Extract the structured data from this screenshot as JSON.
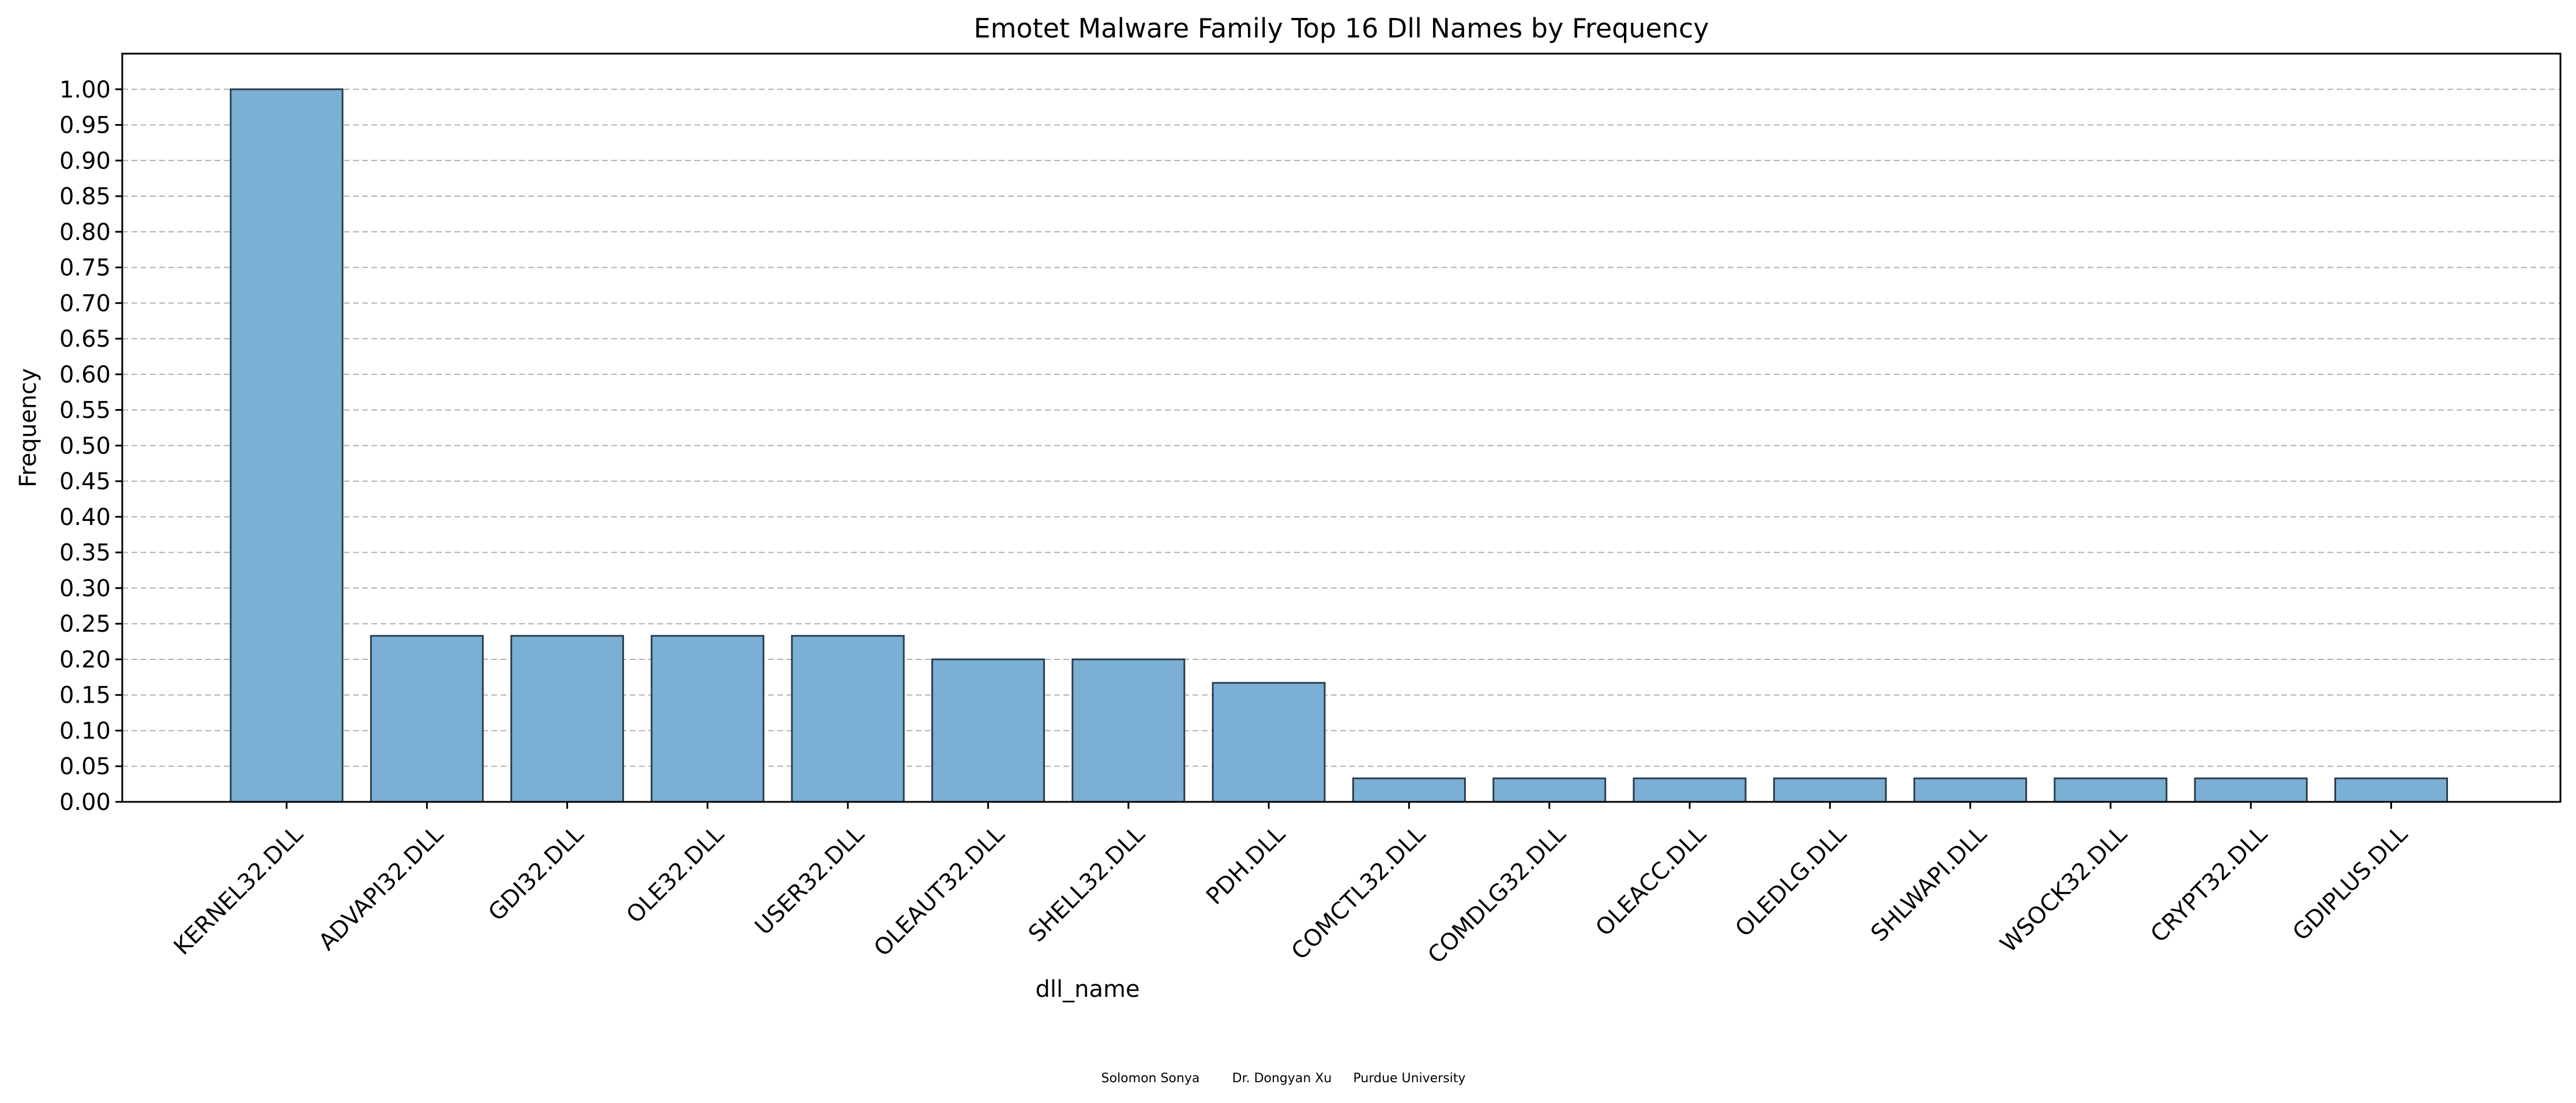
{
  "chart_data": {
    "type": "bar",
    "title": "Emotet Malware Family Top 16 Dll Names by Frequency",
    "xlabel": "dll_name",
    "ylabel": "Frequency",
    "categories": [
      "KERNEL32.DLL",
      "ADVAPI32.DLL",
      "GDI32.DLL",
      "OLE32.DLL",
      "USER32.DLL",
      "OLEAUT32.DLL",
      "SHELL32.DLL",
      "PDH.DLL",
      "COMCTL32.DLL",
      "COMDLG32.DLL",
      "OLEACC.DLL",
      "OLEDLG.DLL",
      "SHLWAPI.DLL",
      "WSOCK32.DLL",
      "CRYPT32.DLL",
      "GDIPLUS.DLL"
    ],
    "values": [
      1.0,
      0.233,
      0.233,
      0.233,
      0.233,
      0.2,
      0.2,
      0.167,
      0.033,
      0.033,
      0.033,
      0.033,
      0.033,
      0.033,
      0.033,
      0.033
    ],
    "ylim": [
      0,
      1.05
    ],
    "yticks": [
      "0.00",
      "0.05",
      "0.10",
      "0.15",
      "0.20",
      "0.25",
      "0.30",
      "0.35",
      "0.40",
      "0.45",
      "0.50",
      "0.55",
      "0.60",
      "0.65",
      "0.70",
      "0.75",
      "0.80",
      "0.85",
      "0.90",
      "0.95",
      "1.00"
    ],
    "grid": "y-dashed",
    "bar_color": "#7bafd4",
    "bar_edge_color": "#2b3d4f"
  },
  "footer": {
    "author": "Solomon Sonya",
    "advisor": "Dr. Dongyan Xu",
    "institution": "Purdue University"
  }
}
